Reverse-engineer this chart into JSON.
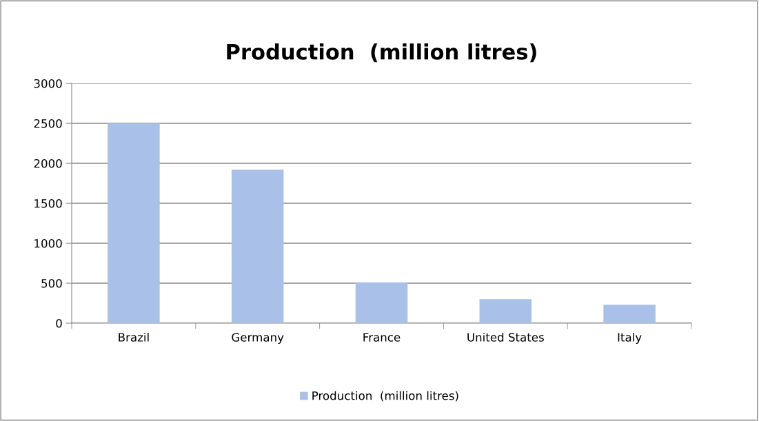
{
  "chart_data": {
    "type": "bar",
    "title": "Production  (million litres)",
    "categories": [
      "Brazil",
      "Germany",
      "France",
      "United States",
      "Italy"
    ],
    "series": [
      {
        "name": "Production  (million litres)",
        "color": "#a9c0e8",
        "values": [
          2500,
          1920,
          510,
          300,
          230
        ]
      }
    ],
    "ylim": [
      0,
      3000
    ],
    "yticks": [
      0,
      500,
      1000,
      1500,
      2000,
      2500,
      3000
    ],
    "grid": "y",
    "legend": "bottom"
  }
}
